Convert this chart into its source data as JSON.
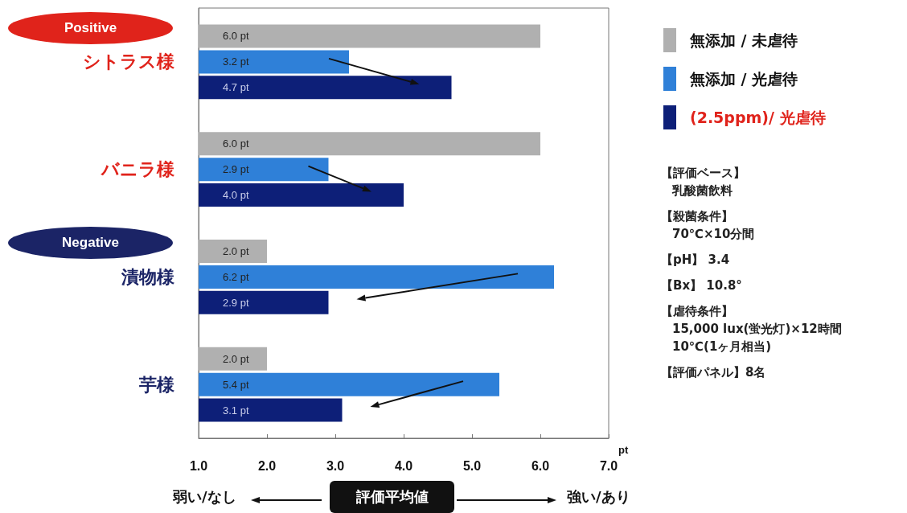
{
  "chart_data": {
    "type": "bar",
    "orientation": "horizontal",
    "categories": [
      "シトラス様",
      "バニラ様",
      "漬物様",
      "芋様"
    ],
    "series": [
      {
        "name": "無添加 / 未虐待",
        "color": "#b0b0b0",
        "values": [
          6.0,
          6.0,
          2.0,
          2.0
        ],
        "value_labels": [
          "6.0 pt",
          "6.0 pt",
          "2.0 pt",
          "2.0 pt"
        ]
      },
      {
        "name": "無添加 / 光虐待",
        "color": "#2f80d8",
        "values": [
          3.2,
          2.9,
          6.2,
          5.4
        ],
        "value_labels": [
          "3.2 pt",
          "2.9 pt",
          "6.2 pt",
          "5.4 pt"
        ]
      },
      {
        "name": "(2.5ppm)/ 光虐待",
        "color": "#0d1f78",
        "values": [
          4.7,
          4.0,
          2.9,
          3.1
        ],
        "value_labels": [
          "4.7 pt",
          "4.0 pt",
          "2.9 pt",
          "3.1 pt"
        ]
      }
    ],
    "xlim": [
      1,
      7
    ],
    "xticks": [
      {
        "value": 1,
        "label": "1.0"
      },
      {
        "value": 2,
        "label": "2.0"
      },
      {
        "value": 3,
        "label": "3.0"
      },
      {
        "value": 4,
        "label": "4.0"
      },
      {
        "value": 5,
        "label": "5.0"
      },
      {
        "value": 6,
        "label": "6.0"
      },
      {
        "value": 7,
        "label": "7.0"
      }
    ],
    "xlabel": "pt",
    "grid": false,
    "legend": "right",
    "annotations": [
      "Positive",
      "Negative",
      "弱い/なし",
      "評価平均値",
      "強い/あり",
      "【評価ベース】",
      "乳酸菌飲料",
      "【殺菌条件】",
      "70℃×10分間",
      "【pH】 3.4",
      "【Bx】 10.8°",
      "【虐待条件】",
      "15,000 lux(蛍光灯)×12時間",
      "10℃(1ヶ月相当)",
      "【評価パネル】8名"
    ]
  }
}
